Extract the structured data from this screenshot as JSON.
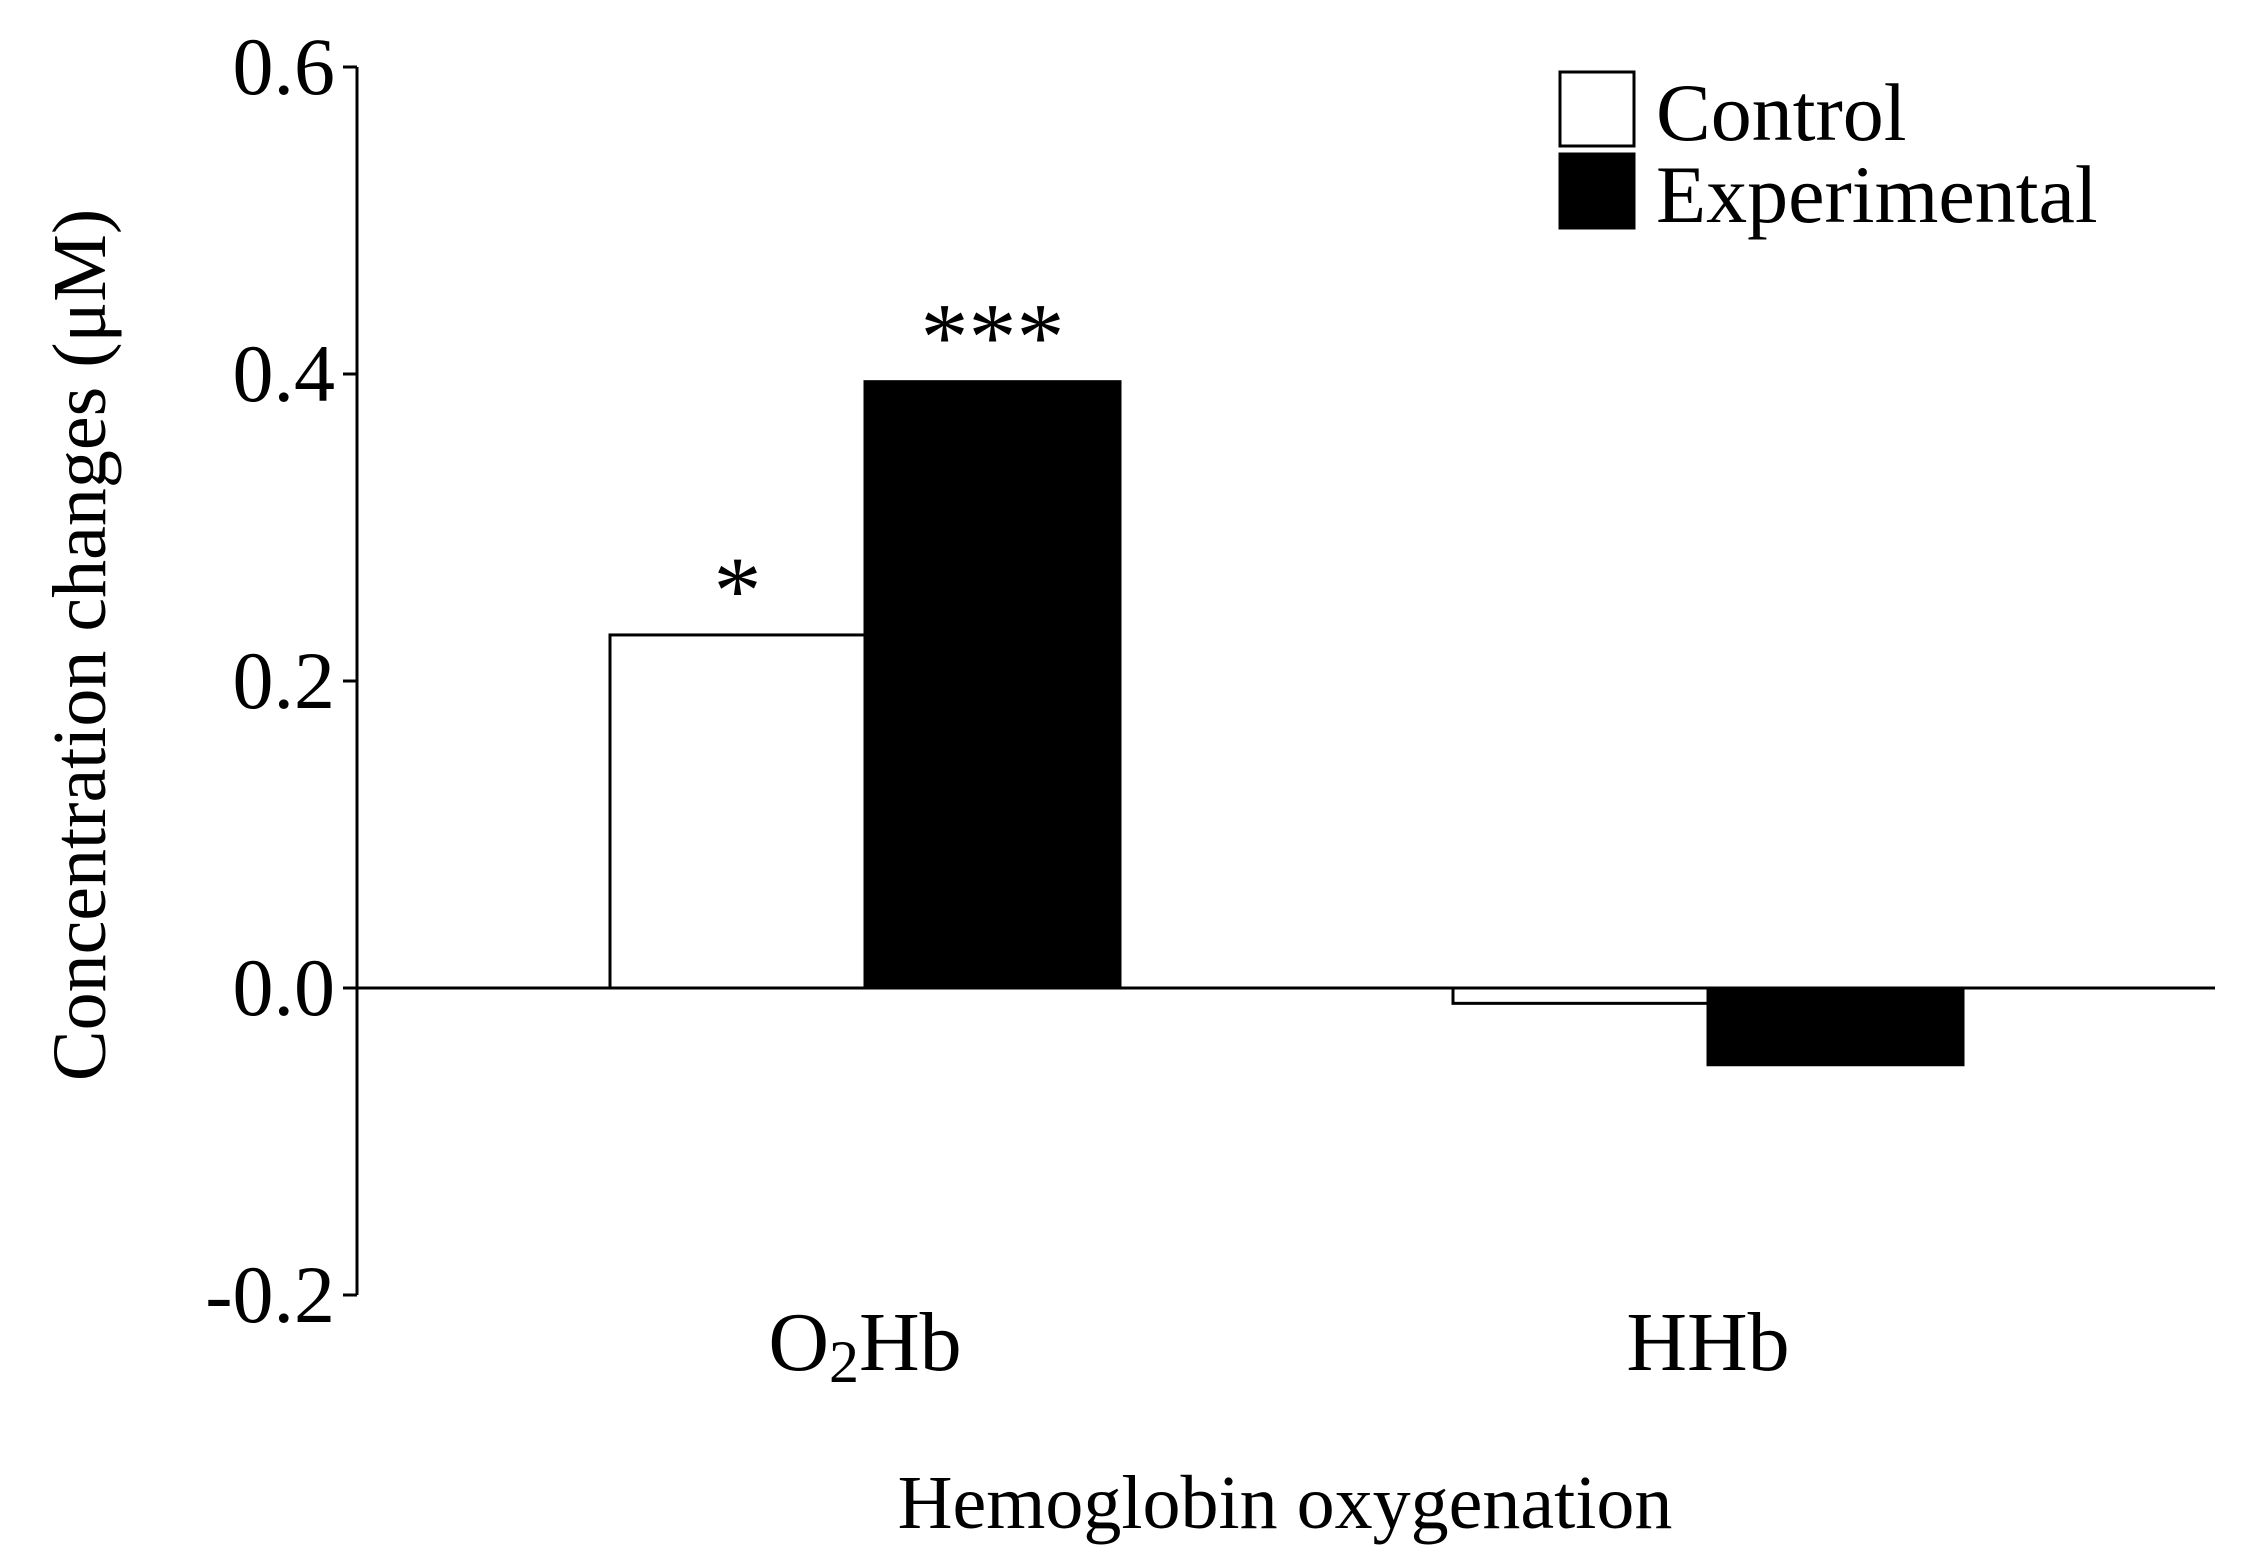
{
  "chart_data": {
    "type": "bar",
    "title": "",
    "xlabel": "Hemoglobin oxygenation",
    "ylabel": "Concentration changes (μM)",
    "categories": [
      {
        "base": "O",
        "sub": "2",
        "rest": "Hb"
      },
      {
        "base": "HHb",
        "sub": "",
        "rest": ""
      }
    ],
    "series": [
      {
        "name": "Control",
        "fill": "#ffffff",
        "values": [
          0.23,
          -0.01
        ]
      },
      {
        "name": "Experimental",
        "fill": "#000000",
        "values": [
          0.395,
          -0.05
        ]
      }
    ],
    "annotations": [
      {
        "category": 0,
        "series": 0,
        "text": "*"
      },
      {
        "category": 0,
        "series": 1,
        "text": "***"
      }
    ],
    "ylim": [
      -0.2,
      0.6
    ],
    "yticks": [
      "-0.2",
      "0.0",
      "0.2",
      "0.4",
      "0.6"
    ],
    "ytick_values": [
      -0.2,
      0.0,
      0.2,
      0.4,
      0.6
    ],
    "grid": false,
    "legend_position": "top-right"
  }
}
